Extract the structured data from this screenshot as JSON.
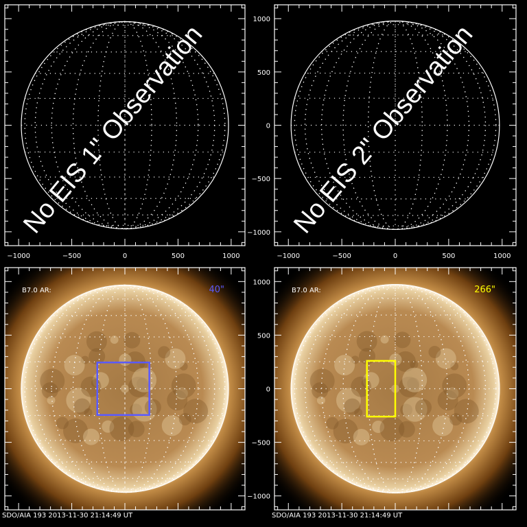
{
  "panels": [
    {
      "id": "top-left",
      "message": "No EIS 1\" Observation",
      "has_image": false
    },
    {
      "id": "top-right",
      "message": "No EIS 2\" Observation",
      "has_image": false
    },
    {
      "id": "bottom-left",
      "has_image": true,
      "label": "B7.0 AR:",
      "step_label": "40\"",
      "box_color": "#5a5aff",
      "box_arcsec": {
        "x": [
          -260,
          230
        ],
        "y": [
          -245,
          245
        ]
      },
      "footer": "SDO/AIA 193  2013-11-30 21:14:49 UT"
    },
    {
      "id": "bottom-right",
      "has_image": true,
      "label": "B7.0 AR:",
      "step_label": "266\"",
      "box_color": "#ffff00",
      "box_arcsec": {
        "x": [
          -265,
          0
        ],
        "y": [
          -260,
          260
        ]
      },
      "footer": "SDO/AIA 193  2013-11-30 21:14:49 UT"
    }
  ],
  "axes": {
    "range": [
      -1130,
      1130
    ],
    "major_ticks": [
      -1000,
      -500,
      0,
      500,
      1000
    ],
    "tick_labels": [
      "−1000",
      "−500",
      "0",
      "500",
      "1000"
    ],
    "solar_radius_arcsec": 975
  },
  "colors": {
    "limb": "#ffffff",
    "sun_core": "#c89a5e",
    "sun_edge": "#f0d6a8",
    "corona": "#7a4a14"
  }
}
